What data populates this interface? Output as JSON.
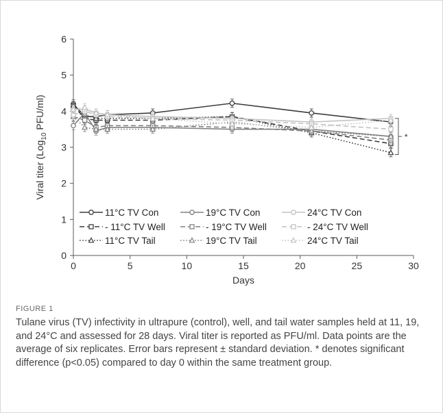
{
  "chart_data": {
    "type": "line",
    "xlabel": "Days",
    "ylabel_parts": [
      "Viral titer (Log",
      "10",
      " PFU/ml)"
    ],
    "xlim": [
      0,
      30
    ],
    "ylim": [
      0,
      6
    ],
    "xticks": [
      0,
      5,
      10,
      15,
      20,
      25,
      30
    ],
    "yticks": [
      0,
      1,
      2,
      3,
      4,
      5,
      6
    ],
    "x": [
      0,
      1,
      2,
      3,
      7,
      14,
      21,
      28
    ],
    "significance_mark": "*",
    "legend_placement": "bottom-left inside plot, 3 columns",
    "series": [
      {
        "name": "11°C TV Con",
        "values": [
          4.2,
          3.85,
          3.85,
          3.9,
          3.95,
          4.22,
          3.95,
          3.7
        ],
        "color": "#3c3c3c",
        "dash": "solid",
        "marker": "circle"
      },
      {
        "name": "- 11°C TV Well",
        "values": [
          4.15,
          3.8,
          3.75,
          3.75,
          3.75,
          3.85,
          3.45,
          3.1
        ],
        "color": "#3c3c3c",
        "dash": "dash",
        "marker": "square"
      },
      {
        "name": "11°C TV Tail",
        "values": [
          4.15,
          3.9,
          3.8,
          3.8,
          3.8,
          3.85,
          3.4,
          2.85
        ],
        "color": "#3c3c3c",
        "dash": "dot",
        "marker": "triangle"
      },
      {
        "name": "19°C TV Con",
        "values": [
          3.6,
          3.95,
          3.45,
          3.55,
          3.55,
          3.5,
          3.5,
          3.3
        ],
        "color": "#808080",
        "dash": "solid",
        "marker": "circle"
      },
      {
        "name": "- 19°C TV Well",
        "values": [
          3.85,
          3.75,
          3.55,
          3.6,
          3.6,
          3.55,
          3.45,
          3.2
        ],
        "color": "#808080",
        "dash": "dash",
        "marker": "square"
      },
      {
        "name": "19°C TV Tail",
        "values": [
          3.85,
          3.55,
          3.5,
          3.5,
          3.5,
          3.7,
          3.45,
          3.3
        ],
        "color": "#808080",
        "dash": "dot",
        "marker": "triangle"
      },
      {
        "name": "24°C TV Con",
        "values": [
          4.05,
          4.05,
          3.95,
          3.9,
          3.85,
          3.8,
          3.7,
          3.8
        ],
        "color": "#c2c2c2",
        "dash": "solid",
        "marker": "circle"
      },
      {
        "name": "- 24°C TV Well",
        "values": [
          3.9,
          4.0,
          3.9,
          3.85,
          3.8,
          3.75,
          3.65,
          3.5
        ],
        "color": "#c2c2c2",
        "dash": "dash",
        "marker": "square"
      },
      {
        "name": "24°C TV Tail",
        "values": [
          4.05,
          4.1,
          3.95,
          3.9,
          3.8,
          3.65,
          3.55,
          3.75
        ],
        "color": "#c2c2c2",
        "dash": "dot",
        "marker": "triangle"
      }
    ]
  },
  "figure_label": "FIGURE 1",
  "caption": "Tulane virus (TV) infectivity in ultrapure (control), well, and tail water samples held at 11, 19, and 24°C and assessed for 28 days. Viral titer is reported as PFU/ml. Data points are the average of six replicates. Error bars represent ± standard deviation. * denotes significant difference (p<0.05) compared to day 0 within the same treatment group."
}
